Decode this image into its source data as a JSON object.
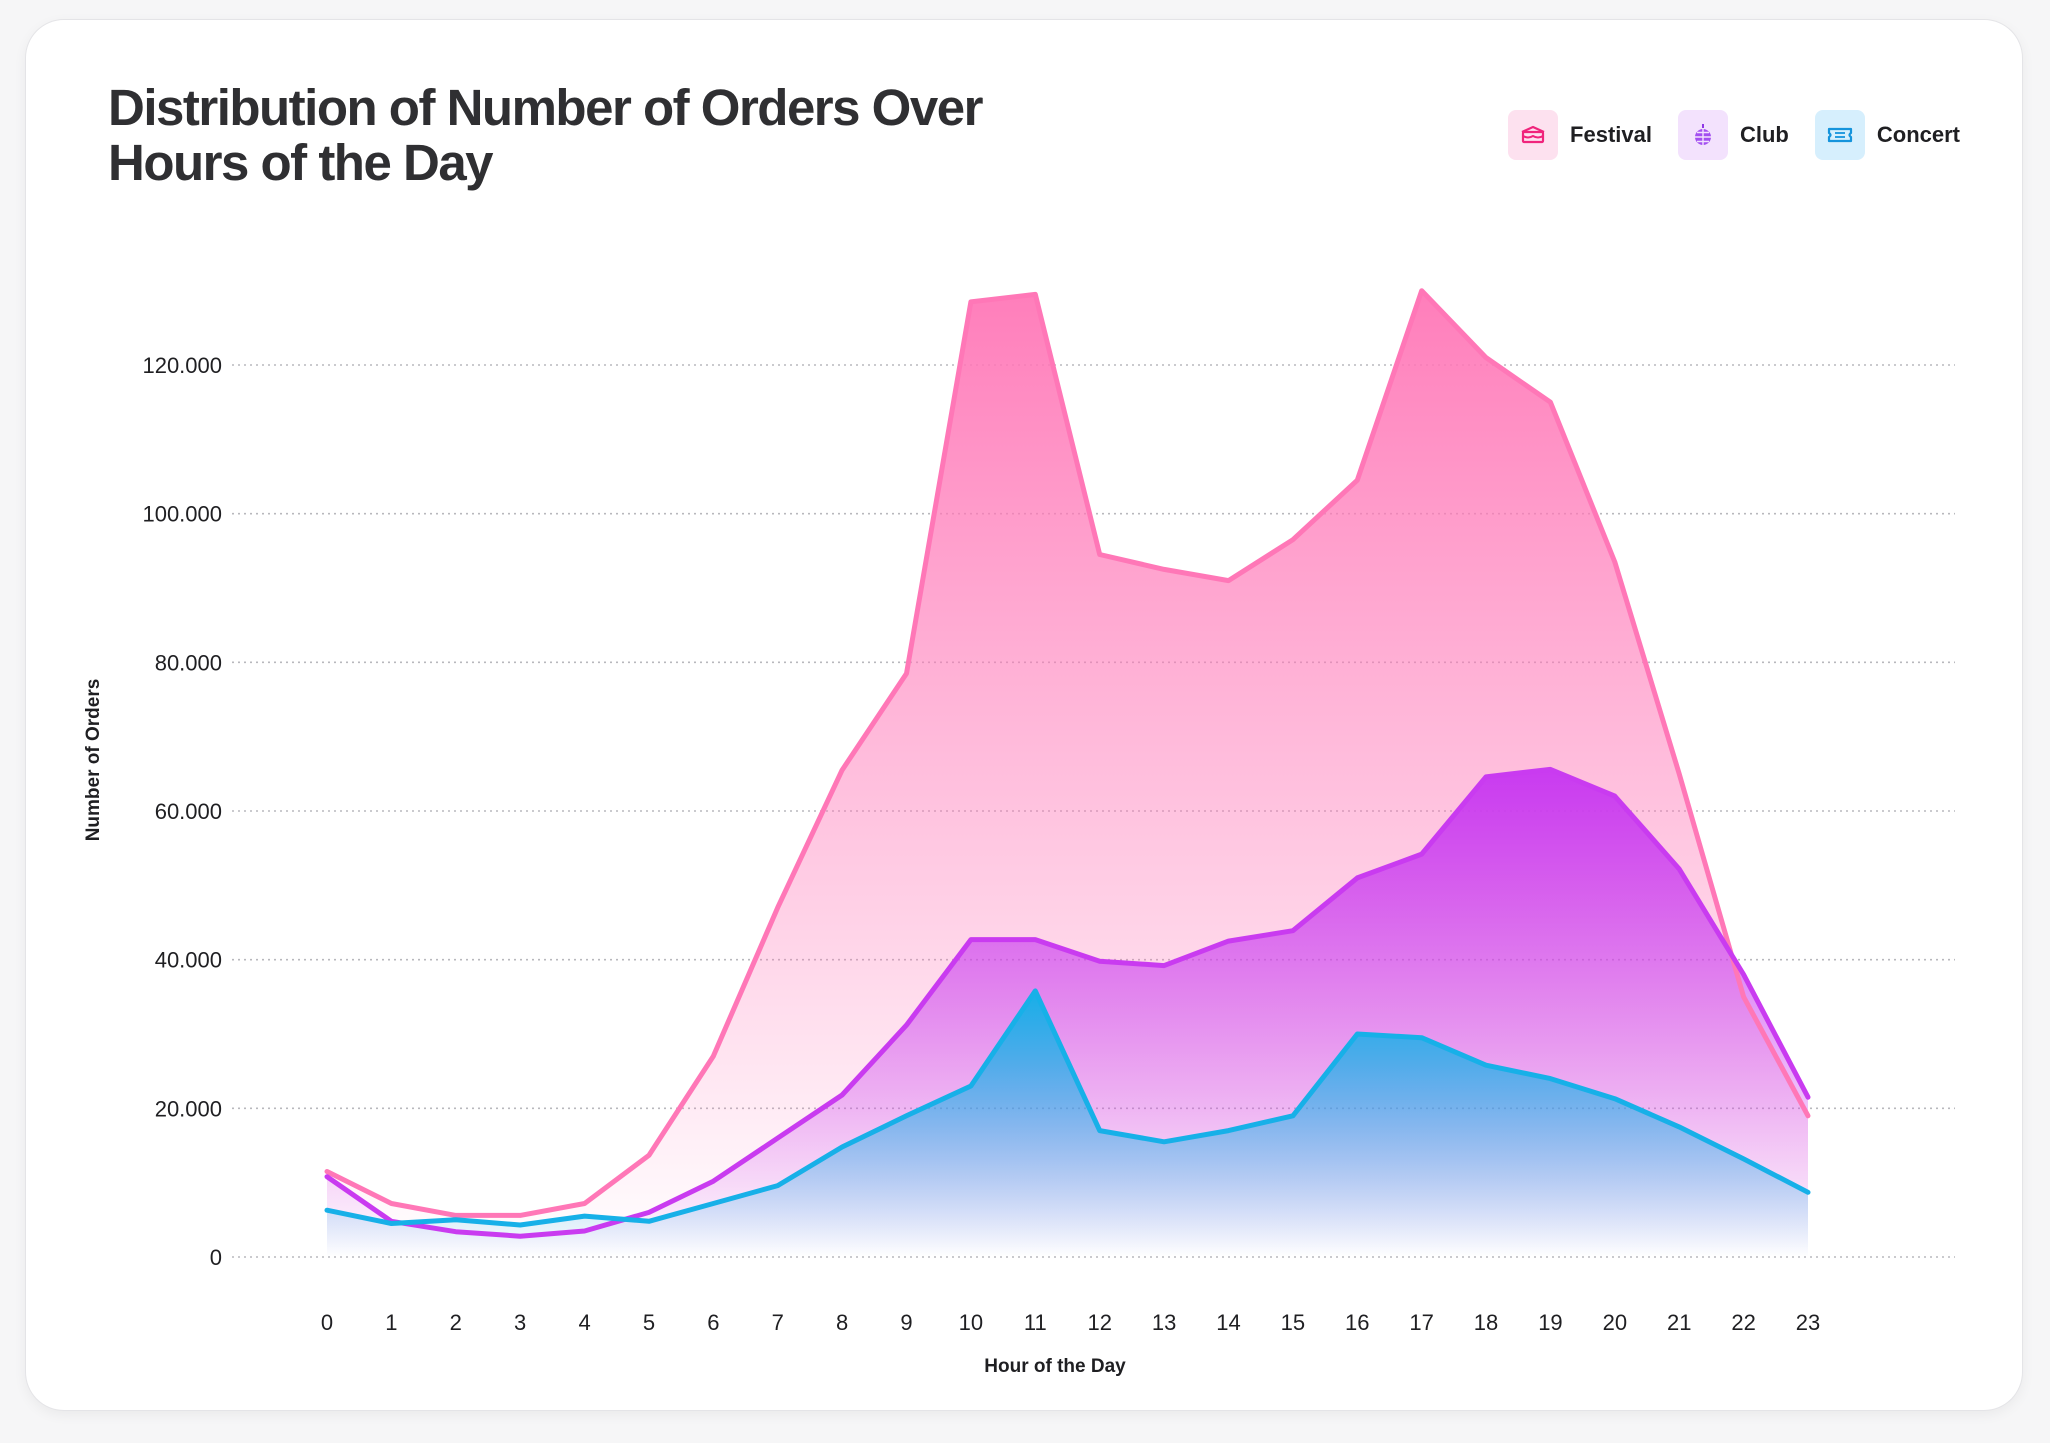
{
  "chart_data": {
    "type": "area",
    "title": "Distribution of Number of Orders Over Hours of the Day",
    "xlabel": "Hour of the Day",
    "ylabel": "Number of Orders",
    "categories": [
      "0",
      "1",
      "2",
      "3",
      "4",
      "5",
      "6",
      "7",
      "8",
      "9",
      "10",
      "11",
      "12",
      "13",
      "14",
      "15",
      "16",
      "17",
      "18",
      "19",
      "20",
      "21",
      "22",
      "23"
    ],
    "y_ticks": [
      "0",
      "20.000",
      "40.000",
      "60.000",
      "80.000",
      "100.000",
      "120.000"
    ],
    "ylim": [
      0,
      135000
    ],
    "grid": true,
    "legend_position": "top-right",
    "series": [
      {
        "name": "Festival",
        "color": "#ff77b7",
        "icon": "tent-icon",
        "values": [
          11500,
          7200,
          5600,
          5600,
          7200,
          13700,
          27000,
          47000,
          65500,
          78500,
          128500,
          129500,
          94500,
          92500,
          91000,
          96500,
          104500,
          130000,
          121000,
          115000,
          93500,
          65000,
          35000,
          19000
        ]
      },
      {
        "name": "Club",
        "color": "#c93bf0",
        "icon": "disco-ball-icon",
        "values": [
          10800,
          4800,
          3400,
          2800,
          3500,
          6000,
          10200,
          16000,
          21800,
          31200,
          42700,
          42700,
          39800,
          39200,
          42500,
          43900,
          51000,
          54200,
          64600,
          65600,
          62000,
          52200,
          38000,
          21500
        ]
      },
      {
        "name": "Concert",
        "color": "#17b0e8",
        "icon": "ticket-icon",
        "values": [
          6300,
          4500,
          5000,
          4300,
          5500,
          4800,
          7200,
          9600,
          14800,
          19000,
          23000,
          35800,
          17000,
          15500,
          17000,
          19000,
          30000,
          29500,
          25800,
          24000,
          21300,
          17500,
          13200,
          8700
        ]
      }
    ]
  }
}
